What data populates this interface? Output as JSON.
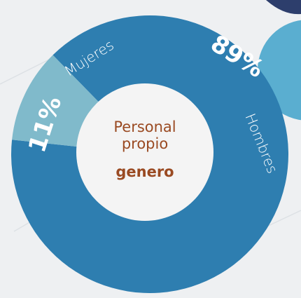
{
  "chart_data": {
    "type": "donut",
    "title": "Personal propio",
    "subtitle": "genero",
    "categories": [
      "Hombres",
      "Mujeres"
    ],
    "values": [
      89,
      11
    ],
    "value_labels": [
      "89%",
      "11%"
    ],
    "colors": [
      "#2e7eb0",
      "#80bacb"
    ]
  }
}
